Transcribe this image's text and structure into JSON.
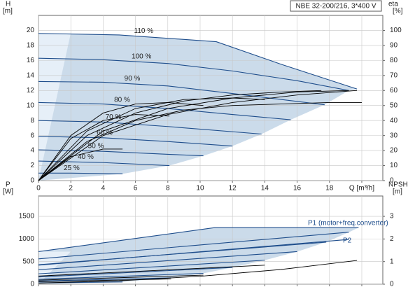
{
  "chart_data": [
    {
      "type": "line",
      "title": "NBE 32-200/216, 3*400 V",
      "ylabel": "H",
      "yunit": "[m]",
      "y2label": "eta",
      "y2unit": "[%]",
      "xlim": [
        0,
        21.3
      ],
      "xticks": [
        0,
        2,
        4,
        6,
        8,
        10,
        12,
        14,
        16,
        18,
        {
          "value": 20,
          "label": "Q [m³/h]"
        }
      ],
      "ylim": [
        0,
        22
      ],
      "yticks": [
        0,
        2,
        4,
        6,
        8,
        10,
        12,
        14,
        16,
        18,
        20
      ],
      "y2lim": [
        0,
        110
      ],
      "y2ticks": [
        0,
        10,
        20,
        30,
        40,
        50,
        60,
        70,
        80,
        90,
        100
      ],
      "grid": true,
      "series": [
        {
          "name": "110 %",
          "color": "#1f4e8c",
          "x": [
            0,
            5,
            11,
            15,
            19.7
          ],
          "values": [
            19.6,
            19.4,
            18.5,
            15.5,
            12.2
          ]
        },
        {
          "name": "100 %",
          "color": "#1f4e8c",
          "x": [
            0,
            4,
            8,
            12,
            16,
            19.2
          ],
          "values": [
            16.3,
            16.1,
            15.6,
            14.6,
            13.3,
            12.0
          ]
        },
        {
          "name": "90 %",
          "color": "#1f4e8c",
          "x": [
            0,
            4,
            8,
            12,
            17.7
          ],
          "values": [
            13.2,
            13.1,
            12.6,
            11.6,
            10.1
          ]
        },
        {
          "name": "80 %",
          "color": "#1f4e8c",
          "x": [
            0,
            4,
            8,
            12,
            15.6
          ],
          "values": [
            10.4,
            10.2,
            9.6,
            8.8,
            8.1
          ]
        },
        {
          "name": "70 %",
          "color": "#1f4e8c",
          "x": [
            0,
            4,
            8,
            13.8
          ],
          "values": [
            8.0,
            7.8,
            7.2,
            6.2
          ]
        },
        {
          "name": "60 %",
          "color": "#1f4e8c",
          "x": [
            0,
            4,
            8,
            12
          ],
          "values": [
            5.9,
            5.7,
            5.2,
            4.6
          ]
        },
        {
          "name": "50 %",
          "color": "#1f4e8c",
          "x": [
            0,
            4,
            8,
            10.2
          ],
          "values": [
            4.1,
            3.9,
            3.5,
            3.3
          ]
        },
        {
          "name": "40 %",
          "color": "#1f4e8c",
          "x": [
            0,
            4,
            8.1
          ],
          "values": [
            2.6,
            2.4,
            2.0
          ]
        },
        {
          "name": "25 %",
          "color": "#1f4e8c",
          "x": [
            0,
            2,
            5.2
          ],
          "values": [
            1.0,
            1.0,
            0.9
          ]
        },
        {
          "color": "#000000",
          "axis": "y2",
          "x": [
            0,
            4,
            8,
            12,
            16,
            19.7
          ],
          "values": [
            0,
            30,
            44,
            52,
            57,
            60
          ]
        },
        {
          "color": "#000000",
          "axis": "y2",
          "x": [
            0,
            4,
            8,
            12,
            16,
            19.2
          ],
          "values": [
            0,
            33,
            48,
            55,
            59,
            60
          ]
        },
        {
          "color": "#000000",
          "axis": "y2",
          "x": [
            0,
            3,
            6,
            9,
            12,
            15,
            17.5
          ],
          "values": [
            0,
            30,
            45,
            53,
            57,
            59,
            60
          ]
        },
        {
          "color": "#000000",
          "axis": "y2",
          "x": [
            0,
            3,
            6,
            9,
            12,
            15,
            18,
            20
          ],
          "values": [
            0,
            26,
            40,
            47,
            50,
            51,
            52,
            52
          ]
        },
        {
          "color": "#000000",
          "axis": "y2",
          "x": [
            0,
            3,
            6,
            9,
            12,
            14
          ],
          "values": [
            0,
            33,
            48,
            54,
            55,
            54
          ]
        },
        {
          "color": "#000000",
          "axis": "y2",
          "x": [
            0,
            2,
            4,
            6,
            8,
            10.2
          ],
          "values": [
            0,
            30,
            45,
            51,
            52,
            50
          ]
        },
        {
          "color": "#000000",
          "axis": "y2",
          "x": [
            0,
            2,
            4,
            6,
            8.1
          ],
          "values": [
            0,
            28,
            40,
            44,
            43
          ]
        },
        {
          "color": "#000000",
          "axis": "y2",
          "x": [
            0,
            2,
            4,
            5.2
          ],
          "values": [
            0,
            16,
            21,
            21
          ]
        }
      ]
    },
    {
      "type": "line",
      "ylabel": "P",
      "yunit": "[W]",
      "y2label": "NPSH",
      "y2unit": "[m]",
      "xlim": [
        0,
        21.3
      ],
      "xticks": [
        0,
        2,
        4,
        6,
        8,
        10,
        12,
        14,
        16,
        18,
        20
      ],
      "ylim": [
        0,
        1950
      ],
      "yticks": [
        0,
        500,
        1000,
        1500
      ],
      "y2lim": [
        0,
        3.9
      ],
      "y2ticks": [
        0,
        1,
        2,
        3
      ],
      "grid": true,
      "annotations": [
        "P1 (motor+freq.converter)",
        "P2"
      ],
      "series": [
        {
          "color": "#1f4e8c",
          "x": [
            0,
            10.9,
            19.8
          ],
          "values": [
            720,
            1250,
            1250
          ]
        },
        {
          "color": "#1f4e8c",
          "x": [
            0,
            19.2
          ],
          "values": [
            560,
            1150
          ]
        },
        {
          "color": "#1f4e8c",
          "x": [
            0,
            17.8
          ],
          "values": [
            430,
            930
          ]
        },
        {
          "color": "#1f4e8c",
          "x": [
            0,
            16
          ],
          "values": [
            320,
            720
          ]
        },
        {
          "color": "#1f4e8c",
          "x": [
            0,
            14
          ],
          "values": [
            230,
            530
          ]
        },
        {
          "color": "#1f4e8c",
          "x": [
            0,
            12
          ],
          "values": [
            160,
            370
          ]
        },
        {
          "color": "#1f4e8c",
          "x": [
            0,
            10.2
          ],
          "values": [
            110,
            240
          ]
        },
        {
          "color": "#1f4e8c",
          "x": [
            0,
            8.2
          ],
          "values": [
            70,
            140
          ]
        },
        {
          "color": "#1f4e8c",
          "x": [
            0,
            5.2
          ],
          "values": [
            30,
            50
          ]
        },
        {
          "color": "#1f4e8c",
          "x": [
            0,
            19.2
          ],
          "values": [
            420,
            990
          ]
        },
        {
          "color": "#000000",
          "x": [
            0,
            14
          ],
          "values": [
            180,
            420
          ]
        },
        {
          "color": "#000000",
          "x": [
            0,
            10.2
          ],
          "values": [
            90,
            200
          ]
        },
        {
          "color": "#000000",
          "x": [
            0,
            8.2
          ],
          "values": [
            55,
            115
          ]
        },
        {
          "color": "#000000",
          "axis": "y2",
          "x": [
            0,
            5,
            10,
            15,
            19.7
          ],
          "values": [
            0.05,
            0.15,
            0.35,
            0.65,
            1.05
          ]
        }
      ]
    }
  ]
}
